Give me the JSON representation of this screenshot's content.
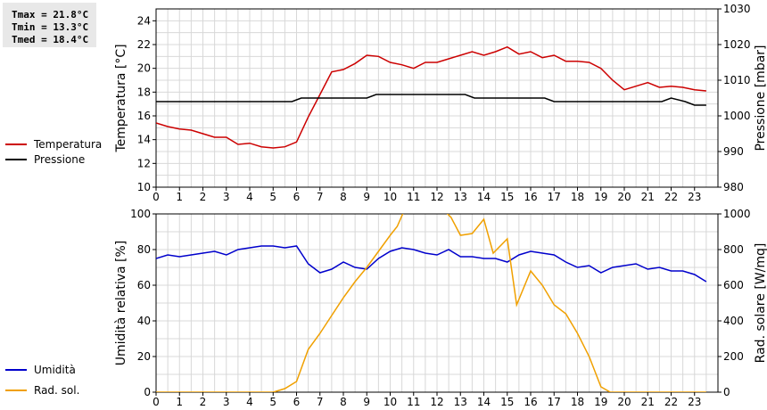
{
  "stats": {
    "tmax": "Tmax = 21.8°C",
    "tmin": "Tmin = 13.3°C",
    "tmed": "Tmed = 18.4°C"
  },
  "chart_data": [
    {
      "type": "line",
      "ylabel": "Temperatura [°C]",
      "y2label": "Pressione [mbar]",
      "xlim": [
        0,
        24
      ],
      "ylim": [
        10,
        25
      ],
      "y2lim": [
        980,
        1030
      ],
      "xticks": [
        "0",
        "1",
        "2",
        "3",
        "4",
        "5",
        "6",
        "7",
        "8",
        "9",
        "10",
        "11",
        "12",
        "13",
        "14",
        "15",
        "16",
        "17",
        "18",
        "19",
        "20",
        "21",
        "22",
        "23"
      ],
      "yticks": [
        "10",
        "12",
        "14",
        "16",
        "18",
        "20",
        "22",
        "24"
      ],
      "y2ticks": [
        "980",
        "990",
        "1000",
        "1010",
        "1020",
        "1030"
      ],
      "grid": true,
      "legend": "left",
      "series": [
        {
          "name": "Temperatura",
          "color": "#cc0000",
          "axis": "left",
          "x": [
            0,
            0.5,
            1,
            1.5,
            2,
            2.5,
            3,
            3.5,
            4,
            4.5,
            5,
            5.5,
            6,
            6.5,
            7,
            7.5,
            8,
            8.5,
            9,
            9.5,
            10,
            10.5,
            11,
            11.5,
            12,
            12.5,
            13,
            13.5,
            14,
            14.5,
            15,
            15.5,
            16,
            16.5,
            17,
            17.5,
            18,
            18.5,
            19,
            19.5,
            20,
            20.5,
            21,
            21.5,
            22,
            22.5,
            23,
            23.5
          ],
          "y": [
            15.4,
            15.1,
            14.9,
            14.8,
            14.5,
            14.2,
            14.2,
            13.6,
            13.7,
            13.4,
            13.3,
            13.4,
            13.8,
            15.9,
            17.8,
            19.7,
            19.9,
            20.4,
            21.1,
            21.0,
            20.5,
            20.3,
            20.0,
            20.5,
            20.5,
            20.8,
            21.1,
            21.4,
            21.1,
            21.4,
            21.8,
            21.2,
            21.4,
            20.9,
            21.1,
            20.6,
            20.6,
            20.5,
            20.0,
            19.0,
            18.2,
            18.5,
            18.8,
            18.4,
            18.5,
            18.4,
            18.2,
            18.1
          ]
        },
        {
          "name": "Pressione",
          "color": "#000000",
          "axis": "right",
          "x": [
            0,
            5.8,
            6.2,
            9,
            9.4,
            13.2,
            13.6,
            16.6,
            17,
            21.6,
            22,
            22.6,
            23,
            23.5
          ],
          "y": [
            1004,
            1004,
            1005,
            1005,
            1006,
            1006,
            1005,
            1005,
            1004,
            1004,
            1005,
            1004,
            1003,
            1003
          ]
        }
      ]
    },
    {
      "type": "line",
      "ylabel": "Umidità relativa [%]",
      "y2label": "Rad. solare [W/mq]",
      "xlim": [
        0,
        24
      ],
      "ylim": [
        0,
        100
      ],
      "y2lim": [
        0,
        1000
      ],
      "xticks": [
        "0",
        "1",
        "2",
        "3",
        "4",
        "5",
        "6",
        "7",
        "8",
        "9",
        "10",
        "11",
        "12",
        "13",
        "14",
        "15",
        "16",
        "17",
        "18",
        "19",
        "20",
        "21",
        "22",
        "23"
      ],
      "yticks": [
        "0",
        "20",
        "40",
        "60",
        "80",
        "100"
      ],
      "y2ticks": [
        "0",
        "200",
        "400",
        "600",
        "800",
        "1000"
      ],
      "grid": true,
      "legend": "left",
      "series": [
        {
          "name": "Umidità",
          "color": "#0000cc",
          "axis": "left",
          "x": [
            0,
            0.5,
            1,
            1.5,
            2,
            2.5,
            3,
            3.5,
            4,
            4.5,
            5,
            5.5,
            6,
            6.5,
            7,
            7.5,
            8,
            8.5,
            9,
            9.5,
            10,
            10.5,
            11,
            11.5,
            12,
            12.5,
            13,
            13.5,
            14,
            14.5,
            15,
            15.5,
            16,
            16.5,
            17,
            17.5,
            18,
            18.5,
            19,
            19.5,
            20,
            20.5,
            21,
            21.5,
            22,
            22.5,
            23,
            23.5
          ],
          "y": [
            75,
            77,
            76,
            77,
            78,
            79,
            77,
            80,
            81,
            82,
            82,
            81,
            82,
            72,
            67,
            69,
            73,
            70,
            69,
            75,
            79,
            81,
            80,
            78,
            77,
            80,
            76,
            76,
            75,
            75,
            73,
            77,
            79,
            78,
            77,
            73,
            70,
            71,
            67,
            70,
            71,
            72,
            69,
            70,
            68,
            68,
            66,
            62
          ]
        },
        {
          "name": "Rad. sol.",
          "color": "#f0a000",
          "axis": "right",
          "x": [
            0,
            5,
            5.5,
            6,
            6.5,
            7,
            7.5,
            8,
            8.5,
            9,
            9.5,
            10,
            10.3,
            10.6,
            12.3,
            12.6,
            13,
            13.5,
            14,
            14.4,
            15,
            15.4,
            16,
            16.5,
            17,
            17.5,
            18,
            18.5,
            19,
            19.4,
            20,
            23.5
          ],
          "y": [
            0,
            0,
            20,
            60,
            240,
            330,
            430,
            530,
            620,
            700,
            790,
            880,
            930,
            1020,
            1020,
            980,
            880,
            890,
            970,
            780,
            860,
            490,
            680,
            600,
            490,
            440,
            330,
            200,
            30,
            0,
            0,
            0
          ]
        }
      ]
    }
  ]
}
